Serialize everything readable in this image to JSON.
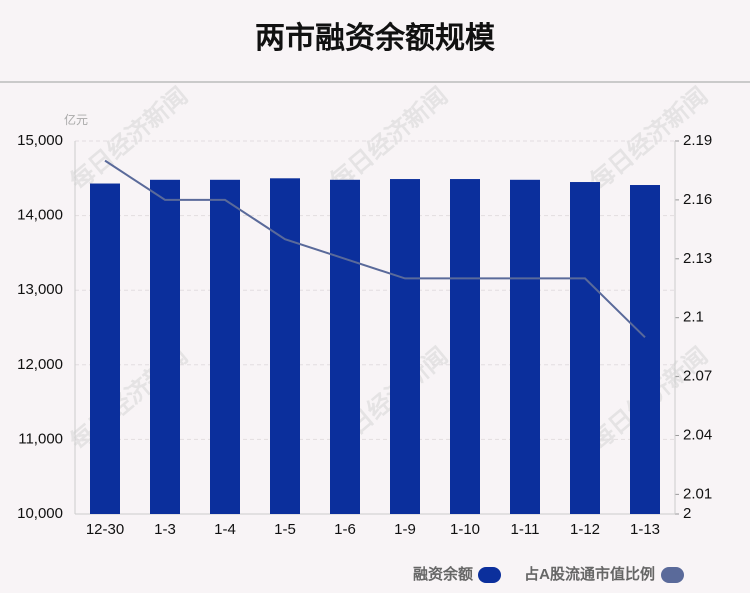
{
  "chart_data": {
    "type": "bar",
    "title": "两市融资余额规模",
    "y_unit": "亿元",
    "watermark": "每日经济新闻",
    "categories": [
      "12-30",
      "1-3",
      "1-4",
      "1-5",
      "1-6",
      "1-9",
      "1-10",
      "1-11",
      "1-12",
      "1-13"
    ],
    "series": [
      {
        "name": "融资余额",
        "type": "bar",
        "color": "#0b2f9c",
        "values": [
          14430,
          14480,
          14480,
          14500,
          14480,
          14490,
          14490,
          14480,
          14450,
          14410
        ]
      },
      {
        "name": "占A股流通市值比例",
        "type": "line",
        "axis": "y2",
        "color": "#5a6a9a",
        "values": [
          2.18,
          2.16,
          2.16,
          2.14,
          2.13,
          2.12,
          2.12,
          2.12,
          2.12,
          2.09
        ]
      }
    ],
    "ylim": [
      10000,
      15000
    ],
    "yticks": [
      {
        "value": 10000,
        "label": "10,000"
      },
      {
        "value": 11000,
        "label": "11,000"
      },
      {
        "value": 12000,
        "label": "12,000"
      },
      {
        "value": 13000,
        "label": "13,000"
      },
      {
        "value": 14000,
        "label": "14,000"
      },
      {
        "value": 15000,
        "label": "15,000"
      }
    ],
    "y2lim": [
      2,
      2.19
    ],
    "y2ticks": [
      2,
      2.01,
      2.04,
      2.07,
      2.1,
      2.13,
      2.16,
      2.19
    ],
    "grid": true
  }
}
